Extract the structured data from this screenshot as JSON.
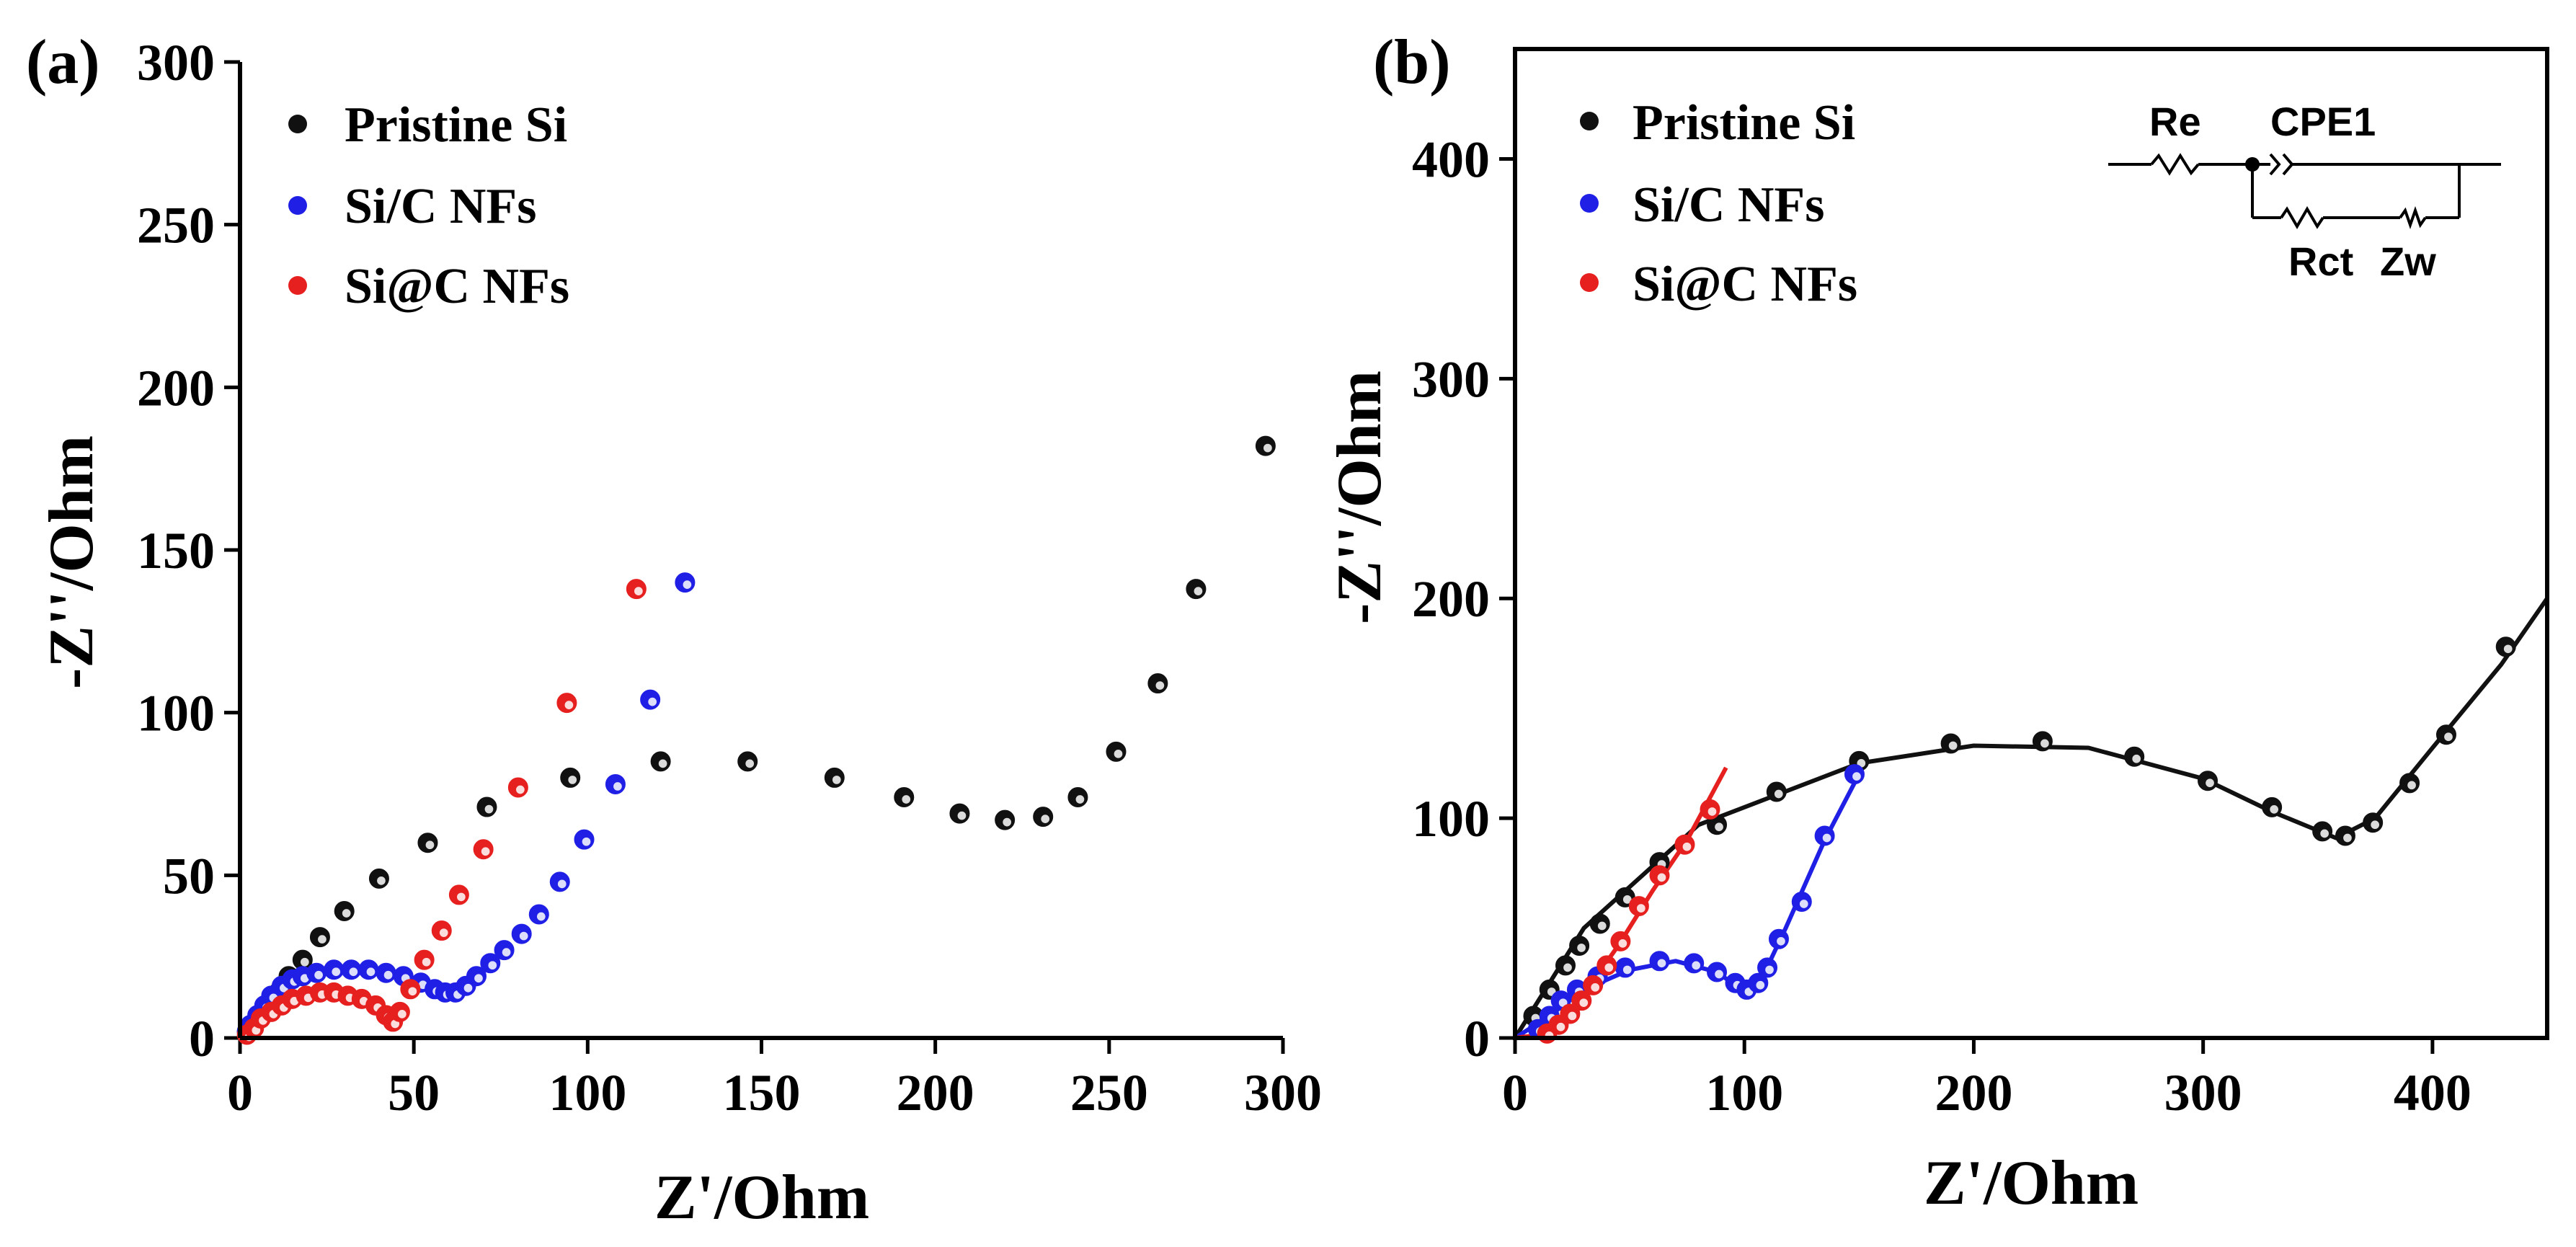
{
  "chart_data": [
    {
      "type": "scatter",
      "panel_label": "(a)",
      "xlabel": "Z'/Ohm",
      "ylabel": "-Z''/Ohm",
      "xlim": [
        0,
        300
      ],
      "ylim": [
        0,
        300
      ],
      "xticks": [
        0,
        50,
        100,
        150,
        200,
        250,
        300
      ],
      "yticks": [
        0,
        50,
        100,
        150,
        200,
        250,
        300
      ],
      "legend_position": "top-left",
      "series": [
        {
          "name": "Pristine Si",
          "color": "#111111",
          "points": [
            [
              2,
              2
            ],
            [
              5,
              6
            ],
            [
              8,
              10
            ],
            [
              11,
              14
            ],
            [
              14,
              19
            ],
            [
              18,
              24
            ],
            [
              23,
              31
            ],
            [
              30,
              39
            ],
            [
              40,
              49
            ],
            [
              54,
              60
            ],
            [
              71,
              71
            ],
            [
              95,
              80
            ],
            [
              121,
              85
            ],
            [
              146,
              85
            ],
            [
              171,
              80
            ],
            [
              191,
              74
            ],
            [
              207,
              69
            ],
            [
              220,
              67
            ],
            [
              231,
              68
            ],
            [
              241,
              74
            ],
            [
              252,
              88
            ],
            [
              264,
              109
            ],
            [
              275,
              138
            ],
            [
              295,
              182
            ]
          ]
        },
        {
          "name": "Si/C NFs",
          "color": "#1f1fe6",
          "points": [
            [
              2,
              2
            ],
            [
              3,
              4
            ],
            [
              5,
              7
            ],
            [
              7,
              10
            ],
            [
              9,
              13
            ],
            [
              12,
              16
            ],
            [
              15,
              18
            ],
            [
              18,
              19
            ],
            [
              22,
              20
            ],
            [
              27,
              21
            ],
            [
              32,
              21
            ],
            [
              37,
              21
            ],
            [
              42,
              20
            ],
            [
              47,
              19
            ],
            [
              52,
              17
            ],
            [
              56,
              15
            ],
            [
              59,
              14
            ],
            [
              62,
              14
            ],
            [
              65,
              16
            ],
            [
              68,
              19
            ],
            [
              72,
              23
            ],
            [
              76,
              27
            ],
            [
              81,
              32
            ],
            [
              86,
              38
            ],
            [
              92,
              48
            ],
            [
              99,
              61
            ],
            [
              108,
              78
            ],
            [
              118,
              104
            ],
            [
              128,
              140
            ]
          ]
        },
        {
          "name": "Si@C NFs",
          "color": "#e61f1f",
          "points": [
            [
              2,
              1
            ],
            [
              4,
              3
            ],
            [
              6,
              6
            ],
            [
              9,
              8
            ],
            [
              12,
              10
            ],
            [
              15,
              12
            ],
            [
              19,
              13
            ],
            [
              23,
              14
            ],
            [
              27,
              14
            ],
            [
              31,
              13
            ],
            [
              35,
              12
            ],
            [
              39,
              10
            ],
            [
              42,
              7
            ],
            [
              44,
              5
            ],
            [
              46,
              8
            ],
            [
              49,
              15
            ],
            [
              53,
              24
            ],
            [
              58,
              33
            ],
            [
              63,
              44
            ],
            [
              70,
              58
            ],
            [
              80,
              77
            ],
            [
              94,
              103
            ],
            [
              114,
              138
            ]
          ]
        }
      ]
    },
    {
      "type": "scatter",
      "panel_label": "(b)",
      "xlabel": "Z'/Ohm",
      "ylabel": "-Z''/Ohm",
      "xlim": [
        0,
        450
      ],
      "ylim": [
        0,
        450
      ],
      "xticks": [
        0,
        100,
        200,
        300,
        400
      ],
      "yticks": [
        0,
        100,
        200,
        300,
        400
      ],
      "legend_position": "top-left",
      "series": [
        {
          "name": "Pristine Si",
          "color": "#111111",
          "points": [
            [
              8,
              10
            ],
            [
              15,
              22
            ],
            [
              22,
              33
            ],
            [
              28,
              42
            ],
            [
              37,
              52
            ],
            [
              48,
              64
            ],
            [
              63,
              80
            ],
            [
              88,
              97
            ],
            [
              114,
              112
            ],
            [
              150,
              126
            ],
            [
              190,
              134
            ],
            [
              230,
              135
            ],
            [
              270,
              128
            ],
            [
              302,
              117
            ],
            [
              330,
              105
            ],
            [
              352,
              94
            ],
            [
              362,
              92
            ],
            [
              374,
              98
            ],
            [
              390,
              116
            ],
            [
              406,
              138
            ],
            [
              432,
              178
            ]
          ],
          "fit": [
            [
              0,
              0
            ],
            [
              30,
              50
            ],
            [
              80,
              97
            ],
            [
              150,
              125
            ],
            [
              200,
              133
            ],
            [
              250,
              132
            ],
            [
              300,
              118
            ],
            [
              330,
              103
            ],
            [
              358,
              91
            ],
            [
              375,
              100
            ],
            [
              400,
              132
            ],
            [
              430,
              170
            ],
            [
              450,
              200
            ]
          ]
        },
        {
          "name": "Si/C NFs",
          "color": "#1f1fe6",
          "points": [
            [
              10,
              4
            ],
            [
              15,
              10
            ],
            [
              20,
              17
            ],
            [
              27,
              22
            ],
            [
              36,
              28
            ],
            [
              48,
              32
            ],
            [
              63,
              35
            ],
            [
              78,
              34
            ],
            [
              88,
              30
            ],
            [
              96,
              25
            ],
            [
              101,
              22
            ],
            [
              106,
              25
            ],
            [
              110,
              32
            ],
            [
              115,
              45
            ],
            [
              125,
              62
            ],
            [
              135,
              92
            ],
            [
              148,
              120
            ]
          ],
          "fit": [
            [
              0,
              0
            ],
            [
              15,
              10
            ],
            [
              30,
              22
            ],
            [
              50,
              31
            ],
            [
              70,
              35
            ],
            [
              88,
              30
            ],
            [
              100,
              21
            ],
            [
              108,
              28
            ],
            [
              118,
              50
            ],
            [
              135,
              90
            ],
            [
              150,
              120
            ]
          ]
        },
        {
          "name": "Si@C NFs",
          "color": "#e61f1f",
          "points": [
            [
              14,
              2
            ],
            [
              19,
              6
            ],
            [
              24,
              11
            ],
            [
              29,
              17
            ],
            [
              34,
              24
            ],
            [
              40,
              33
            ],
            [
              46,
              44
            ],
            [
              54,
              60
            ],
            [
              63,
              74
            ],
            [
              74,
              88
            ],
            [
              85,
              104
            ]
          ],
          "fit": [
            [
              0,
              0
            ],
            [
              15,
              2
            ],
            [
              30,
              20
            ],
            [
              45,
              42
            ],
            [
              60,
              67
            ],
            [
              75,
              90
            ],
            [
              92,
              123
            ]
          ]
        }
      ],
      "inset_circuit": {
        "labels": [
          "Re",
          "CPE1",
          "Rct",
          "Zw"
        ]
      }
    }
  ]
}
